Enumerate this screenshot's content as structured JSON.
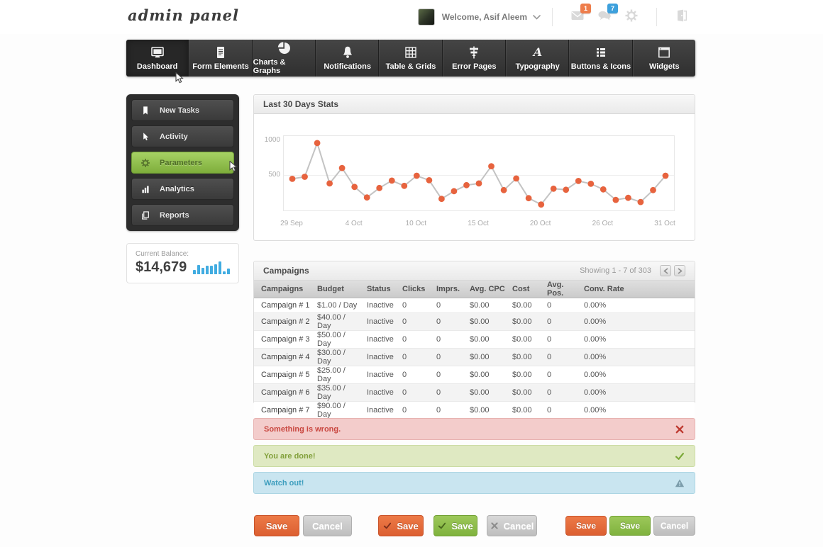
{
  "header": {
    "logo": "admin panel",
    "welcome": "Welcome, Asif Aleem",
    "mail_badge": "1",
    "chat_badge": "7",
    "icons": [
      "mail-icon",
      "chat-icon",
      "gear-icon",
      "logout-icon"
    ]
  },
  "nav": {
    "items": [
      {
        "label": "Dashboard",
        "icon": "monitor",
        "active": true
      },
      {
        "label": "Form Elements",
        "icon": "document",
        "active": false
      },
      {
        "label": "Charts & Graphs",
        "icon": "pie",
        "active": false
      },
      {
        "label": "Notifications",
        "icon": "bell",
        "active": false
      },
      {
        "label": "Table & Grids",
        "icon": "grid",
        "active": false
      },
      {
        "label": "Error Pages",
        "icon": "signpost",
        "active": false
      },
      {
        "label": "Typography",
        "icon": "typography",
        "active": false
      },
      {
        "label": "Buttons & Icons",
        "icon": "list",
        "active": false
      },
      {
        "label": "Widgets",
        "icon": "window",
        "active": false
      }
    ]
  },
  "sidebar": {
    "items": [
      {
        "label": "New Tasks",
        "icon": "bookmark",
        "active": false
      },
      {
        "label": "Activity",
        "icon": "pointer",
        "active": false
      },
      {
        "label": "Parameters",
        "icon": "gear",
        "active": true
      },
      {
        "label": "Analytics",
        "icon": "bar-chart",
        "active": false
      },
      {
        "label": "Reports",
        "icon": "copy",
        "active": false
      }
    ]
  },
  "balance": {
    "label": "Current Balance:",
    "value": "$14,679",
    "bar_color": "#41ace1",
    "bars": [
      6,
      13,
      9,
      12,
      12,
      14,
      18,
      4,
      8
    ]
  },
  "stats_panel": {
    "title": "Last 30 Days Stats"
  },
  "chart_data": {
    "type": "line",
    "title": "Last 30 Days Stats",
    "values": [
      450,
      480,
      960,
      385,
      605,
      335,
      185,
      320,
      425,
      350,
      495,
      430,
      165,
      275,
      360,
      385,
      630,
      290,
      455,
      175,
      85,
      310,
      295,
      420,
      380,
      300,
      150,
      180,
      120,
      290,
      495
    ],
    "x_ticks": [
      {
        "label": "29 Sep",
        "index": 0
      },
      {
        "label": "4 Oct",
        "index": 5
      },
      {
        "label": "10 Oct",
        "index": 10
      },
      {
        "label": "15 Oct",
        "index": 15
      },
      {
        "label": "20 Oct",
        "index": 20
      },
      {
        "label": "26 Oct",
        "index": 25
      },
      {
        "label": "31 Oct",
        "index": 30
      }
    ],
    "y_ticks": [
      1000,
      500
    ],
    "ylim": [
      0,
      1060
    ],
    "point_color": "#e7633e",
    "line_color": "#c3c3c3",
    "grid": "horizontal-500-only",
    "legend": "none"
  },
  "campaigns": {
    "title": "Campaigns",
    "showing": "Showing 1 - 7 of 303",
    "pager_icons": [
      "chevron-left",
      "chevron-right"
    ],
    "columns": [
      "Campaigns",
      "Budget",
      "Status",
      "Clicks",
      "Imprs.",
      "Avg. CPC",
      "Cost",
      "Avg. Pos.",
      "Conv. Rate"
    ],
    "rows": [
      [
        "Campaign # 1",
        "$1.00 / Day",
        "Inactive",
        "0",
        "0",
        "$0.00",
        "$0.00",
        "0",
        "0.00%"
      ],
      [
        "Campaign # 2",
        "$40.00 / Day",
        "Inactive",
        "0",
        "0",
        "$0.00",
        "$0.00",
        "0",
        "0.00%"
      ],
      [
        "Campaign # 3",
        "$50.00 / Day",
        "Inactive",
        "0",
        "0",
        "$0.00",
        "$0.00",
        "0",
        "0.00%"
      ],
      [
        "Campaign # 4",
        "$30.00 / Day",
        "Inactive",
        "0",
        "0",
        "$0.00",
        "$0.00",
        "0",
        "0.00%"
      ],
      [
        "Campaign # 5",
        "$25.00 / Day",
        "Inactive",
        "0",
        "0",
        "$0.00",
        "$0.00",
        "0",
        "0.00%"
      ],
      [
        "Campaign # 6",
        "$35.00 / Day",
        "Inactive",
        "0",
        "0",
        "$0.00",
        "$0.00",
        "0",
        "0.00%"
      ],
      [
        "Campaign # 7",
        "$90.00 / Day",
        "Inactive",
        "0",
        "0",
        "$0.00",
        "$0.00",
        "0",
        "0.00%"
      ]
    ]
  },
  "alerts": [
    {
      "type": "error",
      "text": "Something is wrong.",
      "icon": "cross"
    },
    {
      "type": "success",
      "text": "You are done!",
      "icon": "check"
    },
    {
      "type": "info",
      "text": "Watch out!",
      "icon": "warning"
    }
  ],
  "footer_buttons": {
    "group1": [
      {
        "label": "Save",
        "variant": "orange"
      },
      {
        "label": "Cancel",
        "variant": "gray"
      }
    ],
    "group2": [
      {
        "label": "Save",
        "variant": "orange",
        "icon": "check"
      },
      {
        "label": "Save",
        "variant": "green",
        "icon": "check"
      },
      {
        "label": "Cancel",
        "variant": "gray",
        "icon": "cross"
      }
    ],
    "group3": [
      {
        "label": "Save",
        "variant": "orange"
      },
      {
        "label": "Save",
        "variant": "green"
      },
      {
        "label": "Cancel",
        "variant": "gray"
      }
    ]
  }
}
